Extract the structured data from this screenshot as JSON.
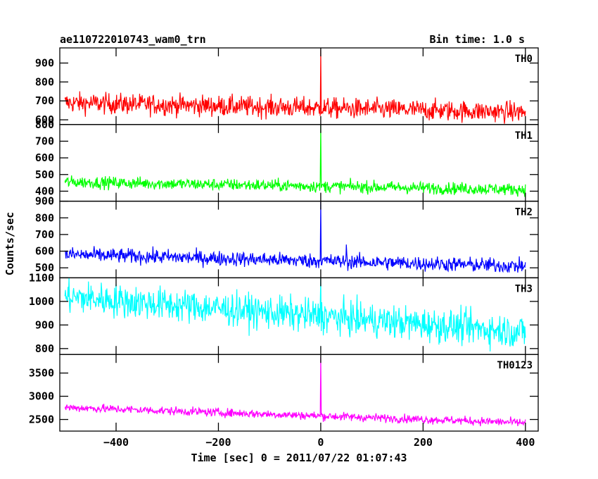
{
  "header": {
    "title": "ae110722010743_wam0_trn",
    "bin_time": "Bin time: 1.0 s"
  },
  "chart_data": {
    "type": "line",
    "title": "ae110722010743_wam0_trn",
    "subtitle": "Bin time: 1.0 s",
    "xlabel": "Time [sec] 0 = 2011/07/22 01:07:43",
    "ylabel": "Counts/sec",
    "xlim": [
      -510,
      425
    ],
    "x_ticks": [
      -400,
      -200,
      0,
      200,
      400
    ],
    "x_sampling": {
      "start": -500,
      "end": 400,
      "bin": 1.0
    },
    "grid": false,
    "panels": [
      {
        "name": "TH0",
        "color": "#ff0000",
        "ylim": [
          575,
          980
        ],
        "y_ticks": [
          600,
          700,
          800,
          900
        ],
        "trend_start": 690,
        "trend_end": 640,
        "noise_sd": 27,
        "spikes": [
          {
            "x": 0,
            "y": 970
          }
        ]
      },
      {
        "name": "TH1",
        "color": "#00ff00",
        "ylim": [
          340,
          800
        ],
        "y_ticks": [
          400,
          500,
          600,
          700,
          800
        ],
        "trend_start": 455,
        "trend_end": 410,
        "noise_sd": 18,
        "spikes": [
          {
            "x": 0,
            "y": 800
          }
        ]
      },
      {
        "name": "TH2",
        "color": "#0000ff",
        "ylim": [
          440,
          900
        ],
        "y_ticks": [
          500,
          600,
          700,
          800,
          900
        ],
        "trend_start": 580,
        "trend_end": 510,
        "noise_sd": 22,
        "spikes": [
          {
            "x": 0,
            "y": 900
          },
          {
            "x": 50,
            "y": 640
          }
        ]
      },
      {
        "name": "TH3",
        "color": "#00ffff",
        "ylim": [
          775,
          1100
        ],
        "y_ticks": [
          800,
          900,
          1000,
          1100
        ],
        "trend_start": 1020,
        "trend_end": 870,
        "noise_sd": 35,
        "spikes": [
          {
            "x": 0,
            "y": 1100
          }
        ]
      },
      {
        "name": "TH0123",
        "color": "#ff00ff",
        "ylim": [
          2250,
          3900
        ],
        "y_ticks": [
          2500,
          3000,
          3500
        ],
        "trend_start": 2760,
        "trend_end": 2430,
        "noise_sd": 45,
        "spikes": [
          {
            "x": 0,
            "y": 3850
          }
        ]
      }
    ]
  }
}
